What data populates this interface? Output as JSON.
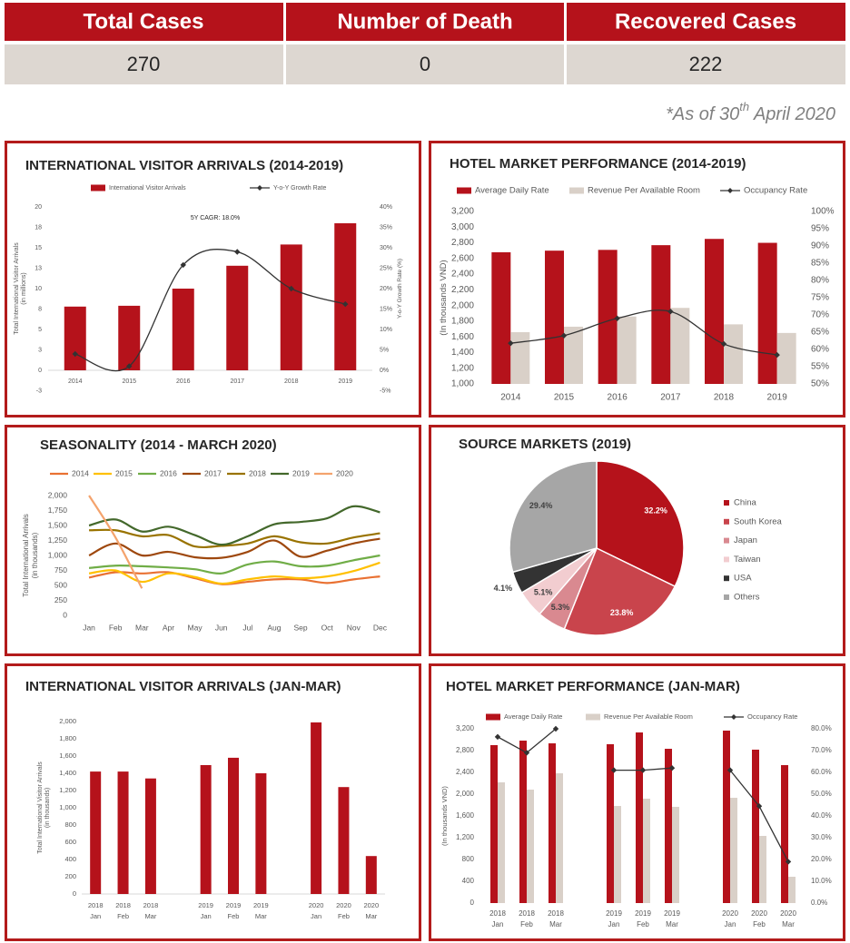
{
  "stats": {
    "headers": [
      "Total Cases",
      "Number of Death",
      "Recovered Cases"
    ],
    "values": [
      270,
      0,
      222
    ]
  },
  "as_of": [
    "*As of 30",
    "th",
    " April 2020"
  ],
  "chart_data": [
    {
      "type": "bar",
      "title": "INTERNATIONAL VISITOR ARRIVALS (2014-2019)",
      "categories": [
        "2014",
        "2015",
        "2016",
        "2017",
        "2018",
        "2019"
      ],
      "series": [
        {
          "name": "International Visitor Arrivals",
          "color": "#b5121b",
          "values": [
            7.8,
            7.9,
            10.0,
            12.8,
            15.4,
            18.0
          ]
        },
        {
          "name": "Y-o-Y Growth Rate",
          "type": "line",
          "axis": "y2",
          "color": "#333333",
          "values": [
            4,
            1,
            25.8,
            29,
            20,
            16.2
          ]
        }
      ],
      "ylim": [
        -2.5,
        20
      ],
      "yticks": [
        {
          "value": -2.5,
          "label": "-3"
        },
        0,
        {
          "value": 2.5,
          "label": "3"
        },
        5,
        {
          "value": 7.5,
          "label": "8"
        },
        10,
        {
          "value": 12.5,
          "label": "13"
        },
        15,
        {
          "value": 17.5,
          "label": "18"
        },
        20
      ],
      "y2lim": [
        -5,
        40
      ],
      "y2ticks": [
        {
          "value": -5,
          "label": "-5%"
        },
        {
          "value": 0,
          "label": "0%"
        },
        {
          "value": 5,
          "label": "5%"
        },
        {
          "value": 10,
          "label": "10%"
        },
        {
          "value": 15,
          "label": "15%"
        },
        {
          "value": 20,
          "label": "20%"
        },
        {
          "value": 25,
          "label": "25%"
        },
        {
          "value": 30,
          "label": "30%"
        },
        {
          "value": 35,
          "label": "35%"
        },
        {
          "value": 40,
          "label": "40%"
        }
      ],
      "ylabel": [
        "Total International Visitor Arrivals",
        "(in millions)"
      ],
      "y2label": "Y-o-Y Growth Rate (%)",
      "annotation": "5Y CAGR: 18.0%",
      "smooth": true,
      "markers": true
    },
    {
      "type": "bar",
      "title": "HOTEL MARKET PERFORMANCE (2014-2019)",
      "categories": [
        "2014",
        "2015",
        "2016",
        "2017",
        "2018",
        "2019"
      ],
      "series": [
        {
          "name": "Average Daily Rate",
          "color": "#b5121b",
          "values": [
            2680,
            2700,
            2710,
            2770,
            2850,
            2800
          ]
        },
        {
          "name": "Revenue Per Available Room",
          "color": "#d9d0c8",
          "values": [
            1660,
            1730,
            1860,
            1970,
            1760,
            1650
          ]
        },
        {
          "name": "Occupancy Rate",
          "type": "line",
          "axis": "y2",
          "color": "#333333",
          "values": [
            61.8,
            64,
            69,
            71,
            61.6,
            58.4
          ]
        }
      ],
      "ylim": [
        1000,
        3200
      ],
      "yticks": [
        {
          "value": 1000,
          "label": "1,000"
        },
        {
          "value": 1200,
          "label": "1,200"
        },
        {
          "value": 1400,
          "label": "1,400"
        },
        {
          "value": 1600,
          "label": "1,600"
        },
        {
          "value": 1800,
          "label": "1,800"
        },
        {
          "value": 2000,
          "label": "2,000"
        },
        {
          "value": 2200,
          "label": "2,200"
        },
        {
          "value": 2400,
          "label": "2,400"
        },
        {
          "value": 2600,
          "label": "2,600"
        },
        {
          "value": 2800,
          "label": "2,800"
        },
        {
          "value": 3000,
          "label": "3,000"
        },
        {
          "value": 3200,
          "label": "3,200"
        }
      ],
      "y2lim": [
        50,
        100
      ],
      "y2ticks": [
        {
          "value": 50,
          "label": "50%"
        },
        {
          "value": 55,
          "label": "55%"
        },
        {
          "value": 60,
          "label": "60%"
        },
        {
          "value": 65,
          "label": "65%"
        },
        {
          "value": 70,
          "label": "70%"
        },
        {
          "value": 75,
          "label": "75%"
        },
        {
          "value": 80,
          "label": "80%"
        },
        {
          "value": 85,
          "label": "85%"
        },
        {
          "value": 90,
          "label": "90%"
        },
        {
          "value": 95,
          "label": "95%"
        },
        {
          "value": 100,
          "label": "100%"
        }
      ],
      "ylabel": [
        "(In thousands VND)"
      ],
      "smooth": true,
      "markers": true
    },
    {
      "type": "line",
      "title": "SEASONALITY (2014 - MARCH 2020)",
      "categories": [
        "Jan",
        "Feb",
        "Mar",
        "Apr",
        "May",
        "Jun",
        "Jul",
        "Aug",
        "Sep",
        "Oct",
        "Nov",
        "Dec"
      ],
      "series": [
        {
          "name": "2014",
          "color": "#e97132",
          "values": [
            630,
            720,
            700,
            720,
            620,
            520,
            560,
            600,
            600,
            540,
            600,
            650
          ]
        },
        {
          "name": "2015",
          "color": "#ffc000",
          "values": [
            700,
            750,
            560,
            700,
            640,
            530,
            600,
            650,
            620,
            650,
            740,
            880
          ]
        },
        {
          "name": "2016",
          "color": "#70ad47",
          "values": [
            790,
            830,
            820,
            800,
            770,
            700,
            850,
            900,
            820,
            830,
            920,
            1000
          ]
        },
        {
          "name": "2017",
          "color": "#9e480e",
          "values": [
            1000,
            1200,
            1000,
            1060,
            970,
            960,
            1060,
            1250,
            980,
            1080,
            1200,
            1280
          ]
        },
        {
          "name": "2018",
          "color": "#997300",
          "values": [
            1420,
            1420,
            1320,
            1340,
            1150,
            1160,
            1200,
            1320,
            1220,
            1200,
            1300,
            1370
          ]
        },
        {
          "name": "2019",
          "color": "#43682b",
          "values": [
            1500,
            1600,
            1400,
            1480,
            1340,
            1180,
            1320,
            1520,
            1560,
            1620,
            1820,
            1720
          ]
        },
        {
          "name": "2020",
          "color": "#f4a36d",
          "values": [
            2000,
            1300,
            450,
            null,
            null,
            null,
            null,
            null,
            null,
            null,
            null,
            null
          ]
        }
      ],
      "ylim": [
        0,
        2000
      ],
      "yticks": [
        0,
        250,
        500,
        750,
        {
          "value": 1000,
          "label": "1,000"
        },
        {
          "value": 1250,
          "label": "1,250"
        },
        {
          "value": 1500,
          "label": "1,500"
        },
        {
          "value": 1750,
          "label": "1,750"
        },
        {
          "value": 2000,
          "label": "2,000"
        }
      ],
      "ylabel": [
        "Total International Arrivals",
        "(in thousands)"
      ],
      "smooth": true,
      "markers": false
    },
    {
      "type": "pie",
      "title": "SOURCE MARKETS (2019)",
      "categories": [
        "China",
        "South Korea",
        "Japan",
        "Taiwan",
        "USA",
        "Others"
      ],
      "values": [
        32.2,
        23.8,
        5.3,
        5.1,
        4.1,
        29.4
      ],
      "value_labels": [
        "32.2%",
        "23.8%",
        "5.3%",
        "5.1%",
        "4.1%",
        "29.4%"
      ],
      "colors": [
        "#b5121b",
        "#c9444c",
        "#d98990",
        "#f2cdd0",
        "#333333",
        "#a6a6a6"
      ]
    },
    {
      "type": "bar",
      "title": "INTERNATIONAL VISITOR ARRIVALS (JAN-MAR)",
      "categories": [
        [
          "2018",
          "Jan"
        ],
        [
          "2018",
          "Feb"
        ],
        [
          "2018",
          "Mar"
        ],
        null,
        [
          "2019",
          "Jan"
        ],
        [
          "2019",
          "Feb"
        ],
        [
          "2019",
          "Mar"
        ],
        null,
        [
          "2020",
          "Jan"
        ],
        [
          "2020",
          "Feb"
        ],
        [
          "2020",
          "Mar"
        ]
      ],
      "series": [
        {
          "name": "International Visitor Arrivals",
          "color": "#b5121b",
          "values": [
            1420,
            1420,
            1340,
            null,
            1495,
            1580,
            1400,
            null,
            1990,
            1240,
            440
          ]
        }
      ],
      "ylim": [
        0,
        2000
      ],
      "yticks": [
        0,
        200,
        400,
        600,
        800,
        {
          "value": 1000,
          "label": "1,000"
        },
        {
          "value": 1200,
          "label": "1,200"
        },
        {
          "value": 1400,
          "label": "1,400"
        },
        {
          "value": 1600,
          "label": "1,600"
        },
        {
          "value": 1800,
          "label": "1,800"
        },
        {
          "value": 2000,
          "label": "2,000"
        }
      ],
      "ylabel": [
        "Total International Visitor Arrivals",
        "(in thousands)"
      ],
      "legend": false
    },
    {
      "type": "bar",
      "title": "HOTEL MARKET PERFORMANCE (JAN-MAR)",
      "categories": [
        [
          "2018",
          "Jan"
        ],
        [
          "2018",
          "Feb"
        ],
        [
          "2018",
          "Mar"
        ],
        null,
        [
          "2019",
          "Jan"
        ],
        [
          "2019",
          "Feb"
        ],
        [
          "2019",
          "Mar"
        ],
        null,
        [
          "2020",
          "Jan"
        ],
        [
          "2020",
          "Feb"
        ],
        [
          "2020",
          "Mar"
        ]
      ],
      "series": [
        {
          "name": "Average Daily Rate",
          "color": "#b5121b",
          "values": [
            2900,
            2983,
            2933,
            null,
            2917,
            3133,
            2833,
            null,
            3167,
            2817,
            2533
          ]
        },
        {
          "name": "Revenue Per Available Room",
          "color": "#d9d0c8",
          "values": [
            2217,
            2083,
            2383,
            null,
            1783,
            1917,
            1767,
            null,
            1933,
            1233,
            483
          ]
        },
        {
          "name": "Occupancy Rate",
          "type": "line",
          "axis": "y2",
          "color": "#333333",
          "values": [
            76.3,
            69,
            80,
            null,
            61,
            61,
            62,
            null,
            61,
            44.5,
            19
          ]
        }
      ],
      "ylim": [
        0,
        3200
      ],
      "yticks": [
        0,
        400,
        800,
        {
          "value": 1200,
          "label": "1,200"
        },
        {
          "value": 1600,
          "label": "1,600"
        },
        {
          "value": 2000,
          "label": "2,000"
        },
        {
          "value": 2400,
          "label": "2,400"
        },
        {
          "value": 2800,
          "label": "2,800"
        },
        {
          "value": 3200,
          "label": "3,200"
        }
      ],
      "y2lim": [
        0,
        80
      ],
      "y2ticks": [
        {
          "value": 0,
          "label": "0.0%"
        },
        {
          "value": 10,
          "label": "10.0%"
        },
        {
          "value": 20,
          "label": "20.0%"
        },
        {
          "value": 30,
          "label": "30.0%"
        },
        {
          "value": 40,
          "label": "40.0%"
        },
        {
          "value": 50,
          "label": "50.0%"
        },
        {
          "value": 60,
          "label": "60.0%"
        },
        {
          "value": 70,
          "label": "70.0%"
        },
        {
          "value": 80,
          "label": "80.0%"
        }
      ],
      "ylabel": [
        "(In thousands VND)"
      ],
      "smooth": false,
      "markers": true
    }
  ]
}
